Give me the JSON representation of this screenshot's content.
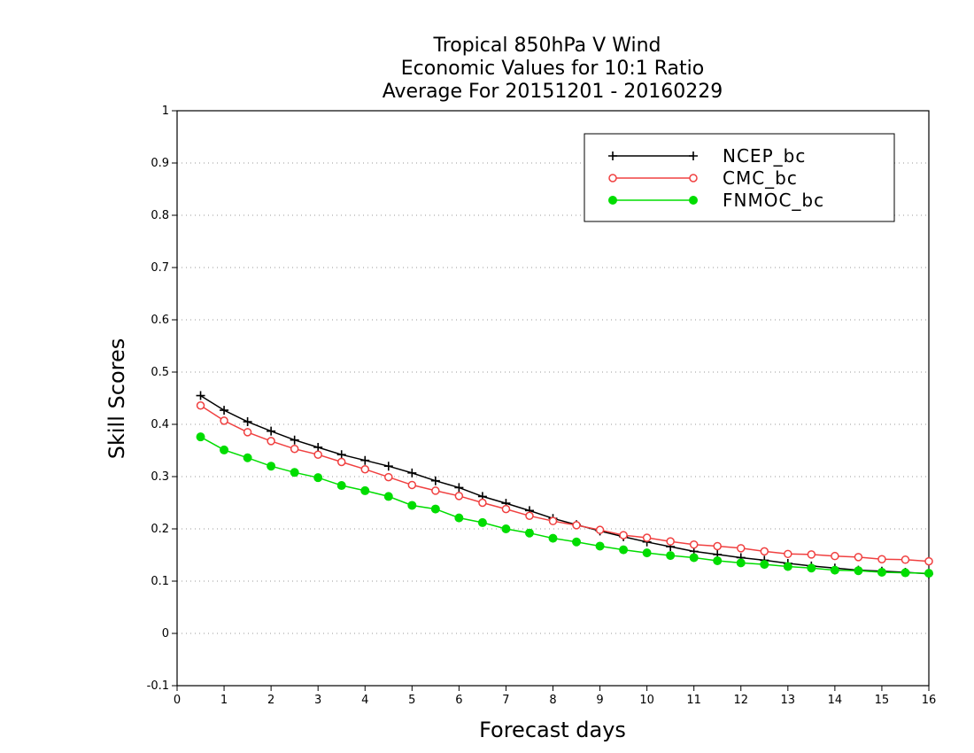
{
  "chart_data": {
    "type": "line",
    "title": [
      "Tropical 850hPa V Wind",
      "Economic Values for 10:1 Ratio",
      "Average For 20151201 - 20160229"
    ],
    "xlabel": "Forecast days",
    "ylabel": "Skill Scores",
    "xlim": [
      0,
      16
    ],
    "ylim": [
      -0.1,
      1
    ],
    "xticks": [
      0,
      1,
      2,
      3,
      4,
      5,
      6,
      7,
      8,
      9,
      10,
      11,
      12,
      13,
      14,
      15,
      16
    ],
    "xtick_labels": [
      "0",
      "1",
      "2",
      "3",
      "4",
      "5",
      "6",
      "7",
      "8",
      "9",
      "10",
      "11",
      "12",
      "13",
      "14",
      "15",
      "16"
    ],
    "yticks": [
      -0.1,
      0,
      0.1,
      0.2,
      0.3,
      0.4,
      0.5,
      0.6,
      0.7,
      0.8,
      0.9,
      1
    ],
    "ytick_labels": [
      "-0.1",
      "0",
      "0.1",
      "0.2",
      "0.3",
      "0.4",
      "0.5",
      "0.6",
      "0.7",
      "0.8",
      "0.9",
      "1"
    ],
    "grid": "dotted-horizontal",
    "legend_position": "top-right",
    "x": [
      0.5,
      1,
      1.5,
      2,
      2.5,
      3,
      3.5,
      4,
      4.5,
      5,
      5.5,
      6,
      6.5,
      7,
      7.5,
      8,
      8.5,
      9,
      9.5,
      10,
      10.5,
      11,
      11.5,
      12,
      12.5,
      13,
      13.5,
      14,
      14.5,
      15,
      15.5,
      16
    ],
    "series": [
      {
        "name": "NCEP_bc",
        "color": "#000000",
        "marker": "plus",
        "values": [
          0.455,
          0.427,
          0.405,
          0.387,
          0.37,
          0.356,
          0.342,
          0.331,
          0.32,
          0.307,
          0.292,
          0.279,
          0.262,
          0.249,
          0.235,
          0.22,
          0.208,
          0.196,
          0.185,
          0.175,
          0.166,
          0.157,
          0.151,
          0.145,
          0.14,
          0.134,
          0.129,
          0.125,
          0.121,
          0.119,
          0.117,
          0.114
        ]
      },
      {
        "name": "CMC_bc",
        "color": "#f04040",
        "marker": "open-circle",
        "values": [
          0.436,
          0.407,
          0.385,
          0.368,
          0.353,
          0.342,
          0.328,
          0.314,
          0.299,
          0.284,
          0.273,
          0.263,
          0.25,
          0.238,
          0.225,
          0.215,
          0.207,
          0.198,
          0.188,
          0.183,
          0.176,
          0.17,
          0.167,
          0.163,
          0.157,
          0.152,
          0.151,
          0.148,
          0.146,
          0.142,
          0.141,
          0.138
        ]
      },
      {
        "name": "FNMOC_bc",
        "color": "#00dd00",
        "marker": "filled-circle",
        "values": [
          0.376,
          0.351,
          0.336,
          0.32,
          0.308,
          0.298,
          0.283,
          0.273,
          0.262,
          0.245,
          0.238,
          0.221,
          0.212,
          0.2,
          0.192,
          0.182,
          0.175,
          0.167,
          0.16,
          0.154,
          0.149,
          0.145,
          0.139,
          0.135,
          0.132,
          0.128,
          0.125,
          0.121,
          0.12,
          0.117,
          0.116,
          0.115
        ]
      }
    ]
  }
}
